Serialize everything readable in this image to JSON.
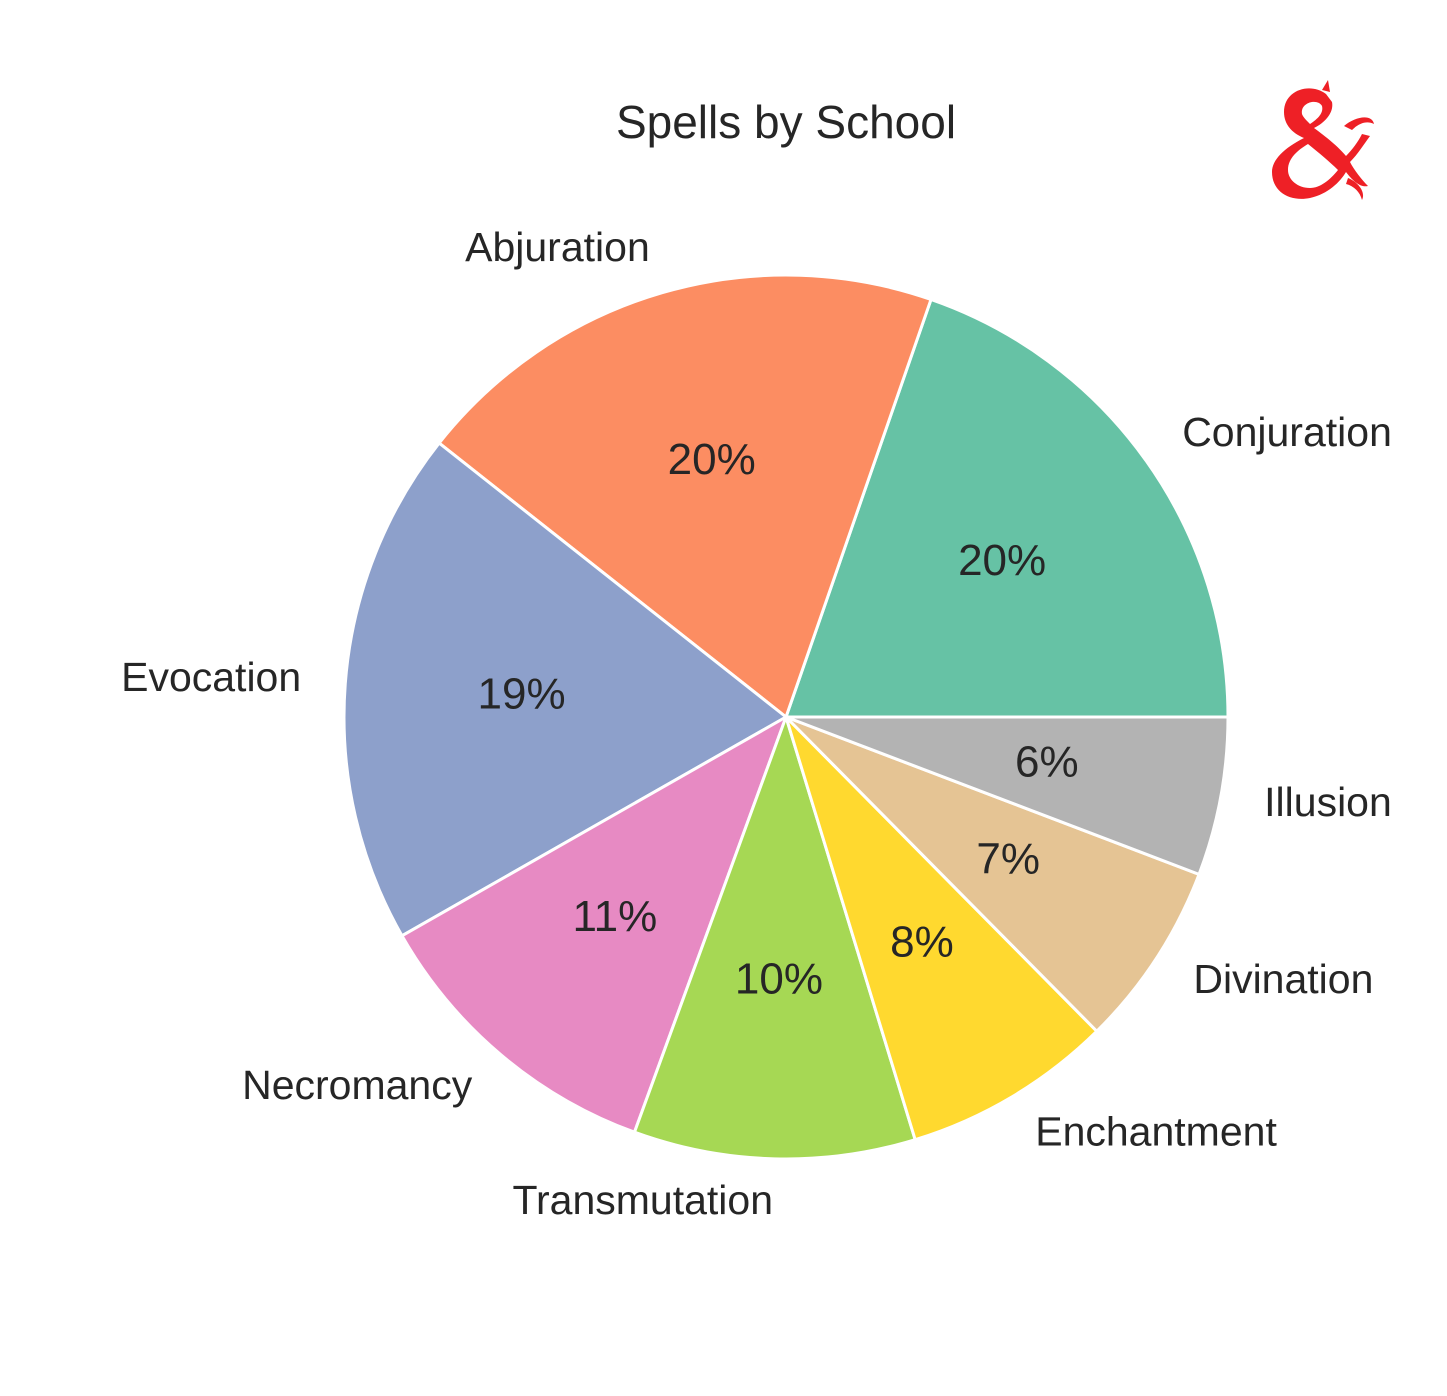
{
  "chart_data": {
    "type": "pie",
    "title": "Spells by School",
    "categories": [
      "Conjuration",
      "Abjuration",
      "Evocation",
      "Necromancy",
      "Transmutation",
      "Enchantment",
      "Divination",
      "Illusion"
    ],
    "values": [
      19.7,
      19.7,
      18.9,
      11.2,
      10.3,
      7.7,
      6.8,
      5.8
    ],
    "data_labels": [
      "20%",
      "20%",
      "19%",
      "11%",
      "10%",
      "8%",
      "7%",
      "6%"
    ],
    "colors": [
      "#66c2a5",
      "#fc8d62",
      "#8da0cb",
      "#e78ac3",
      "#a6d854",
      "#ffd92f",
      "#e5c494",
      "#b3b3b3"
    ],
    "start_angle_deg": 0,
    "direction": "counterclockwise",
    "slice_edge_color": "#ffffff",
    "logo": {
      "icon": "dnd-ampersand-dragon-icon",
      "color": "#ee2026"
    }
  }
}
